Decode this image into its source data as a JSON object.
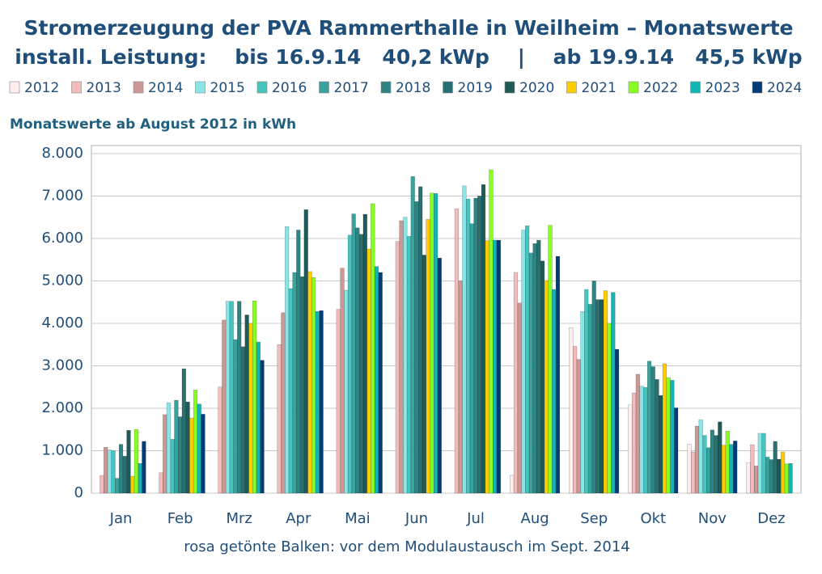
{
  "chart_data": {
    "type": "bar",
    "title": "Stromerzeugung der PVA Rammerthalle in Weilheim – Monatswerte",
    "subtitle": "install. Leistung:    bis 16.9.14   40,2 kWp    |    ab 19.9.14   45,5 kWp",
    "y_label": "Monatswerte ab August 2012 in kWh",
    "note": "rosa getönte Balken: vor dem Modulaustausch im Sept. 2014",
    "categories": [
      "Jan",
      "Feb",
      "Mrz",
      "Apr",
      "Mai",
      "Jun",
      "Jul",
      "Aug",
      "Sep",
      "Okt",
      "Nov",
      "Dez"
    ],
    "ylim": [
      0,
      8000
    ],
    "yticks": [
      0,
      {
        "value": 1000,
        "label": "1.000"
      },
      {
        "value": 2000,
        "label": "2.000"
      },
      {
        "value": 3000,
        "label": "3.000"
      },
      {
        "value": 4000,
        "label": "4.000"
      },
      {
        "value": 5000,
        "label": "5.000"
      },
      {
        "value": 6000,
        "label": "6.000"
      },
      {
        "value": 7000,
        "label": "7.000"
      },
      {
        "value": 8000,
        "label": "8.000"
      }
    ],
    "grid": true,
    "series": [
      {
        "name": "2012",
        "color": "#fdeeee",
        "values": [
          null,
          null,
          null,
          null,
          null,
          null,
          null,
          420,
          3900,
          2080,
          1150,
          720
        ]
      },
      {
        "name": "2013",
        "color": "#f2bcbc",
        "values": [
          420,
          480,
          2500,
          3500,
          4330,
          5930,
          6700,
          5200,
          3460,
          2360,
          970,
          1140
        ]
      },
      {
        "name": "2014",
        "color": "#cc9896",
        "values": [
          1080,
          1850,
          4080,
          4250,
          5300,
          6420,
          5000,
          4480,
          3150,
          2800,
          1580,
          640
        ]
      },
      {
        "name": "2015",
        "color": "#8ae6e6",
        "values": [
          1020,
          2130,
          4520,
          6280,
          4780,
          6500,
          7240,
          6200,
          4280,
          2520,
          1730,
          1410
        ]
      },
      {
        "name": "2016",
        "color": "#45c4c0",
        "values": [
          1000,
          1270,
          4520,
          4820,
          6080,
          6050,
          6930,
          6300,
          4800,
          2490,
          1360,
          1410
        ]
      },
      {
        "name": "2017",
        "color": "#38a29e",
        "values": [
          350,
          2190,
          3620,
          5200,
          6580,
          7460,
          6350,
          5660,
          4450,
          3110,
          1070,
          850
        ]
      },
      {
        "name": "2018",
        "color": "#2e8482",
        "values": [
          1150,
          1800,
          4520,
          6200,
          6250,
          6870,
          6950,
          5880,
          5000,
          2980,
          1490,
          790
        ]
      },
      {
        "name": "2019",
        "color": "#2b7070",
        "values": [
          870,
          2930,
          3450,
          5100,
          6100,
          7220,
          7000,
          5960,
          4560,
          2680,
          1360,
          1220
        ]
      },
      {
        "name": "2020",
        "color": "#1e5a58",
        "values": [
          1480,
          2150,
          4200,
          6680,
          6570,
          5610,
          7270,
          5470,
          4560,
          2300,
          1680,
          800
        ]
      },
      {
        "name": "2021",
        "color": "#ffcc00",
        "values": [
          400,
          1770,
          4000,
          5220,
          5750,
          6450,
          5950,
          5010,
          4770,
          3050,
          1130,
          970
        ]
      },
      {
        "name": "2022",
        "color": "#88ff22",
        "values": [
          1500,
          2430,
          4530,
          5080,
          6820,
          7070,
          7620,
          6310,
          4000,
          2720,
          1460,
          690
        ]
      },
      {
        "name": "2023",
        "color": "#12b4b4",
        "values": [
          700,
          2100,
          3560,
          4280,
          5340,
          7060,
          5960,
          4800,
          4730,
          2660,
          1150,
          700
        ]
      },
      {
        "name": "2024",
        "color": "#003c78",
        "values": [
          1220,
          1860,
          3130,
          4300,
          5200,
          5540,
          5960,
          5580,
          3390,
          2010,
          1230,
          null
        ]
      }
    ]
  }
}
